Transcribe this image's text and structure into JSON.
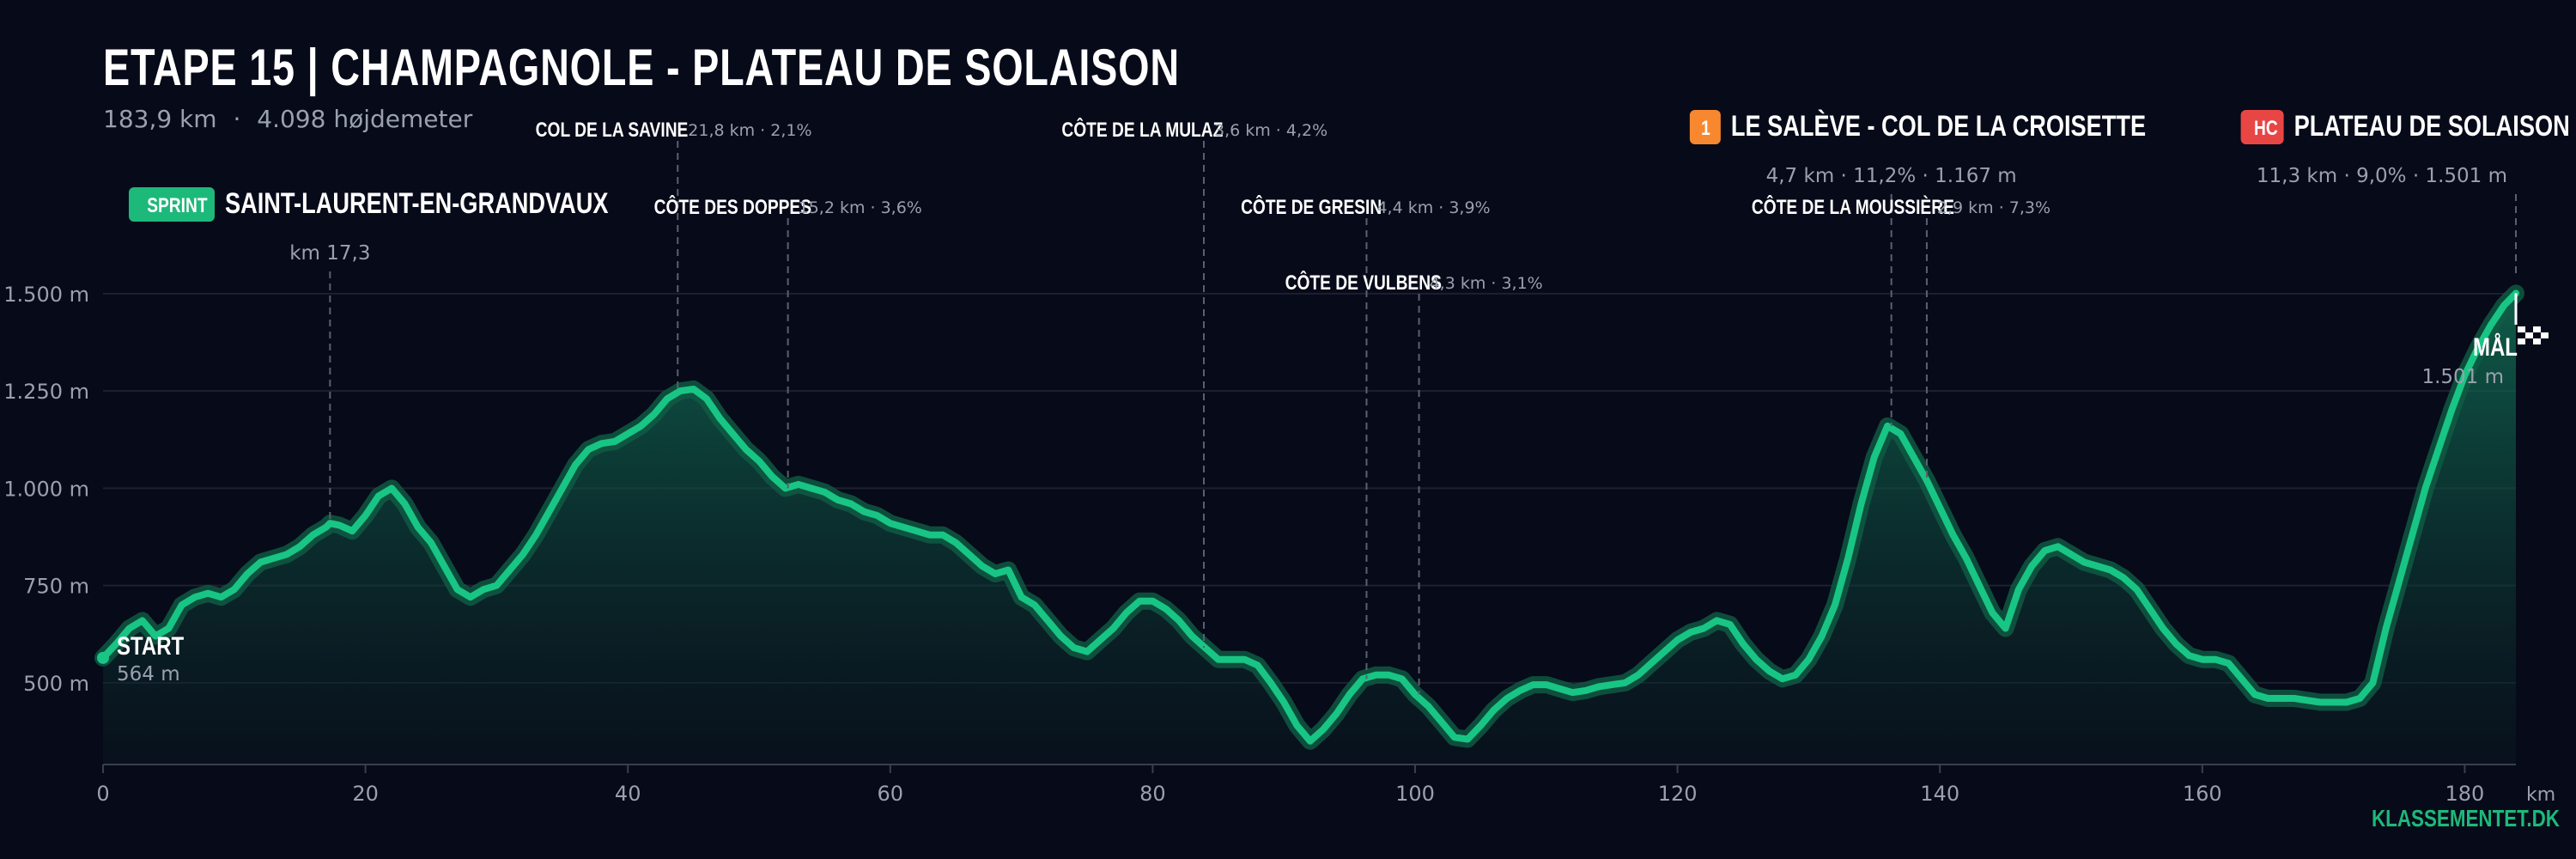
{
  "header": {
    "title": "ETAPE 15  |  CHAMPAGNOLE - PLATEAU DE SOLAISON",
    "distance": "183,9 km",
    "separator": "·",
    "elevation_gain": "4.098 højdemeter"
  },
  "brand": "KLASSEMENTET.DK",
  "colors": {
    "background": "#070a18",
    "profile_line": "#19c585",
    "profile_glow": "#0f5c44",
    "grid": "#1c2030",
    "text_muted": "#9aa0ad",
    "sprint_badge": "#1db97a",
    "cat1_badge": "#f7882f",
    "hc_badge": "#e84545"
  },
  "chart_data": {
    "type": "area",
    "xlabel": "km",
    "ylabel": "",
    "xlim": [
      0,
      183.9
    ],
    "ylim": [
      290,
      1800
    ],
    "xticks": [
      0,
      20,
      40,
      60,
      80,
      100,
      120,
      140,
      160,
      180
    ],
    "xtick_labels": [
      "0",
      "20",
      "40",
      "60",
      "80",
      "100",
      "120",
      "140",
      "160",
      "180"
    ],
    "yticks": [
      500,
      750,
      1000,
      1250,
      1500
    ],
    "ytick_labels": [
      "500 m",
      "750 m",
      "1.000 m",
      "1.250 m",
      "1.500 m"
    ],
    "grid": true,
    "series": [
      {
        "name": "",
        "points": [
          [
            0,
            564
          ],
          [
            1,
            600
          ],
          [
            2,
            640
          ],
          [
            3,
            660
          ],
          [
            4,
            620
          ],
          [
            5,
            640
          ],
          [
            6,
            700
          ],
          [
            7,
            720
          ],
          [
            8,
            730
          ],
          [
            9,
            720
          ],
          [
            10,
            740
          ],
          [
            11,
            780
          ],
          [
            12,
            810
          ],
          [
            13,
            820
          ],
          [
            14,
            830
          ],
          [
            15,
            850
          ],
          [
            16,
            880
          ],
          [
            17,
            900
          ],
          [
            17.3,
            910
          ],
          [
            18,
            905
          ],
          [
            19,
            890
          ],
          [
            20,
            930
          ],
          [
            21,
            980
          ],
          [
            22,
            1000
          ],
          [
            23,
            960
          ],
          [
            24,
            900
          ],
          [
            25,
            860
          ],
          [
            26,
            800
          ],
          [
            27,
            740
          ],
          [
            28,
            720
          ],
          [
            29,
            740
          ],
          [
            30,
            750
          ],
          [
            31,
            790
          ],
          [
            32,
            830
          ],
          [
            33,
            880
          ],
          [
            34,
            940
          ],
          [
            35,
            1000
          ],
          [
            36,
            1060
          ],
          [
            37,
            1100
          ],
          [
            38,
            1115
          ],
          [
            39,
            1120
          ],
          [
            40,
            1140
          ],
          [
            41,
            1160
          ],
          [
            42,
            1190
          ],
          [
            43,
            1230
          ],
          [
            44,
            1250
          ],
          [
            45,
            1255
          ],
          [
            46,
            1230
          ],
          [
            47,
            1180
          ],
          [
            48,
            1140
          ],
          [
            49,
            1100
          ],
          [
            50,
            1070
          ],
          [
            51,
            1030
          ],
          [
            52,
            1000
          ],
          [
            53,
            1010
          ],
          [
            54,
            1000
          ],
          [
            55,
            990
          ],
          [
            56,
            970
          ],
          [
            57,
            960
          ],
          [
            58,
            940
          ],
          [
            59,
            930
          ],
          [
            60,
            910
          ],
          [
            61,
            900
          ],
          [
            62,
            890
          ],
          [
            63,
            880
          ],
          [
            64,
            880
          ],
          [
            65,
            860
          ],
          [
            66,
            830
          ],
          [
            67,
            800
          ],
          [
            68,
            780
          ],
          [
            69,
            790
          ],
          [
            70,
            720
          ],
          [
            71,
            700
          ],
          [
            72,
            660
          ],
          [
            73,
            620
          ],
          [
            74,
            590
          ],
          [
            75,
            580
          ],
          [
            76,
            610
          ],
          [
            77,
            640
          ],
          [
            78,
            680
          ],
          [
            79,
            710
          ],
          [
            80,
            710
          ],
          [
            81,
            690
          ],
          [
            82,
            660
          ],
          [
            83,
            620
          ],
          [
            84,
            590
          ],
          [
            85,
            560
          ],
          [
            86,
            560
          ],
          [
            87,
            560
          ],
          [
            88,
            545
          ],
          [
            89,
            500
          ],
          [
            90,
            450
          ],
          [
            91,
            390
          ],
          [
            92,
            350
          ],
          [
            93,
            380
          ],
          [
            94,
            420
          ],
          [
            95,
            470
          ],
          [
            96,
            510
          ],
          [
            97,
            520
          ],
          [
            98,
            520
          ],
          [
            99,
            510
          ],
          [
            100,
            470
          ],
          [
            101,
            440
          ],
          [
            102,
            400
          ],
          [
            103,
            360
          ],
          [
            104,
            355
          ],
          [
            105,
            390
          ],
          [
            106,
            430
          ],
          [
            107,
            460
          ],
          [
            108,
            480
          ],
          [
            109,
            495
          ],
          [
            110,
            495
          ],
          [
            111,
            485
          ],
          [
            112,
            475
          ],
          [
            113,
            480
          ],
          [
            114,
            490
          ],
          [
            115,
            495
          ],
          [
            116,
            500
          ],
          [
            117,
            520
          ],
          [
            118,
            550
          ],
          [
            119,
            580
          ],
          [
            120,
            610
          ],
          [
            121,
            630
          ],
          [
            122,
            640
          ],
          [
            123,
            660
          ],
          [
            124,
            650
          ],
          [
            125,
            600
          ],
          [
            126,
            560
          ],
          [
            127,
            530
          ],
          [
            128,
            510
          ],
          [
            129,
            520
          ],
          [
            130,
            560
          ],
          [
            131,
            620
          ],
          [
            132,
            700
          ],
          [
            133,
            820
          ],
          [
            134,
            960
          ],
          [
            135,
            1080
          ],
          [
            136,
            1160
          ],
          [
            137,
            1140
          ],
          [
            138,
            1080
          ],
          [
            139,
            1020
          ],
          [
            140,
            950
          ],
          [
            141,
            880
          ],
          [
            142,
            820
          ],
          [
            143,
            750
          ],
          [
            144,
            680
          ],
          [
            145,
            640
          ],
          [
            146,
            740
          ],
          [
            147,
            800
          ],
          [
            148,
            840
          ],
          [
            149,
            850
          ],
          [
            150,
            830
          ],
          [
            151,
            810
          ],
          [
            152,
            800
          ],
          [
            153,
            790
          ],
          [
            154,
            770
          ],
          [
            155,
            740
          ],
          [
            156,
            690
          ],
          [
            157,
            640
          ],
          [
            158,
            600
          ],
          [
            159,
            570
          ],
          [
            160,
            560
          ],
          [
            161,
            560
          ],
          [
            162,
            550
          ],
          [
            163,
            510
          ],
          [
            164,
            470
          ],
          [
            165,
            460
          ],
          [
            166,
            460
          ],
          [
            167,
            460
          ],
          [
            168,
            455
          ],
          [
            169,
            450
          ],
          [
            170,
            450
          ],
          [
            171,
            450
          ],
          [
            172,
            460
          ],
          [
            173,
            500
          ],
          [
            174,
            640
          ],
          [
            175,
            760
          ],
          [
            176,
            880
          ],
          [
            177,
            1000
          ],
          [
            178,
            1100
          ],
          [
            179,
            1200
          ],
          [
            180,
            1290
          ],
          [
            181,
            1360
          ],
          [
            182,
            1420
          ],
          [
            183,
            1470
          ],
          [
            183.9,
            1501
          ]
        ]
      }
    ],
    "start_marker": {
      "label": "START",
      "elevation": "564 m"
    },
    "finish_marker": {
      "label": "MÅL",
      "elevation": "1.501 m"
    },
    "annotations": [
      {
        "km": 17.3,
        "level": 1,
        "badge": "SPRINT",
        "badge_type": "sprint",
        "name": "SAINT-LAURENT-EN-GRANDVAUX",
        "detail": "km 17,3"
      },
      {
        "km": 43.8,
        "level": 0,
        "name": "COL DE LA SAVINE",
        "detail": "21,8 km · 2,1%"
      },
      {
        "km": 52.2,
        "level": 1,
        "name": "CÔTE DES DOPPES",
        "detail": "15,2 km · 3,6%"
      },
      {
        "km": 83.9,
        "level": 0,
        "name": "CÔTE DE LA MULAZ",
        "detail": "3,6 km · 4,2%"
      },
      {
        "km": 96.3,
        "level": 1,
        "name": "CÔTE DE GRESIN",
        "detail": "4,4 km · 3,9%"
      },
      {
        "km": 100.3,
        "level": 2,
        "name": "CÔTE DE VULBENS",
        "detail": "4,3 km · 3,1%"
      },
      {
        "km": 136.3,
        "level": 0,
        "badge": "1",
        "badge_type": "cat1",
        "name": "LE SALÈVE - COL DE LA CROISETTE",
        "detail": "4,7 km · 11,2% · 1.167 m"
      },
      {
        "km": 139.0,
        "level": 1,
        "name": "CÔTE DE LA MOUSSIÈRE",
        "detail": "2,9 km · 7,3%"
      },
      {
        "km": 183.9,
        "level": 0,
        "badge": "HC",
        "badge_type": "hc",
        "name": "PLATEAU DE SOLAISON",
        "detail": "11,3 km · 9,0% · 1.501 m"
      }
    ]
  }
}
